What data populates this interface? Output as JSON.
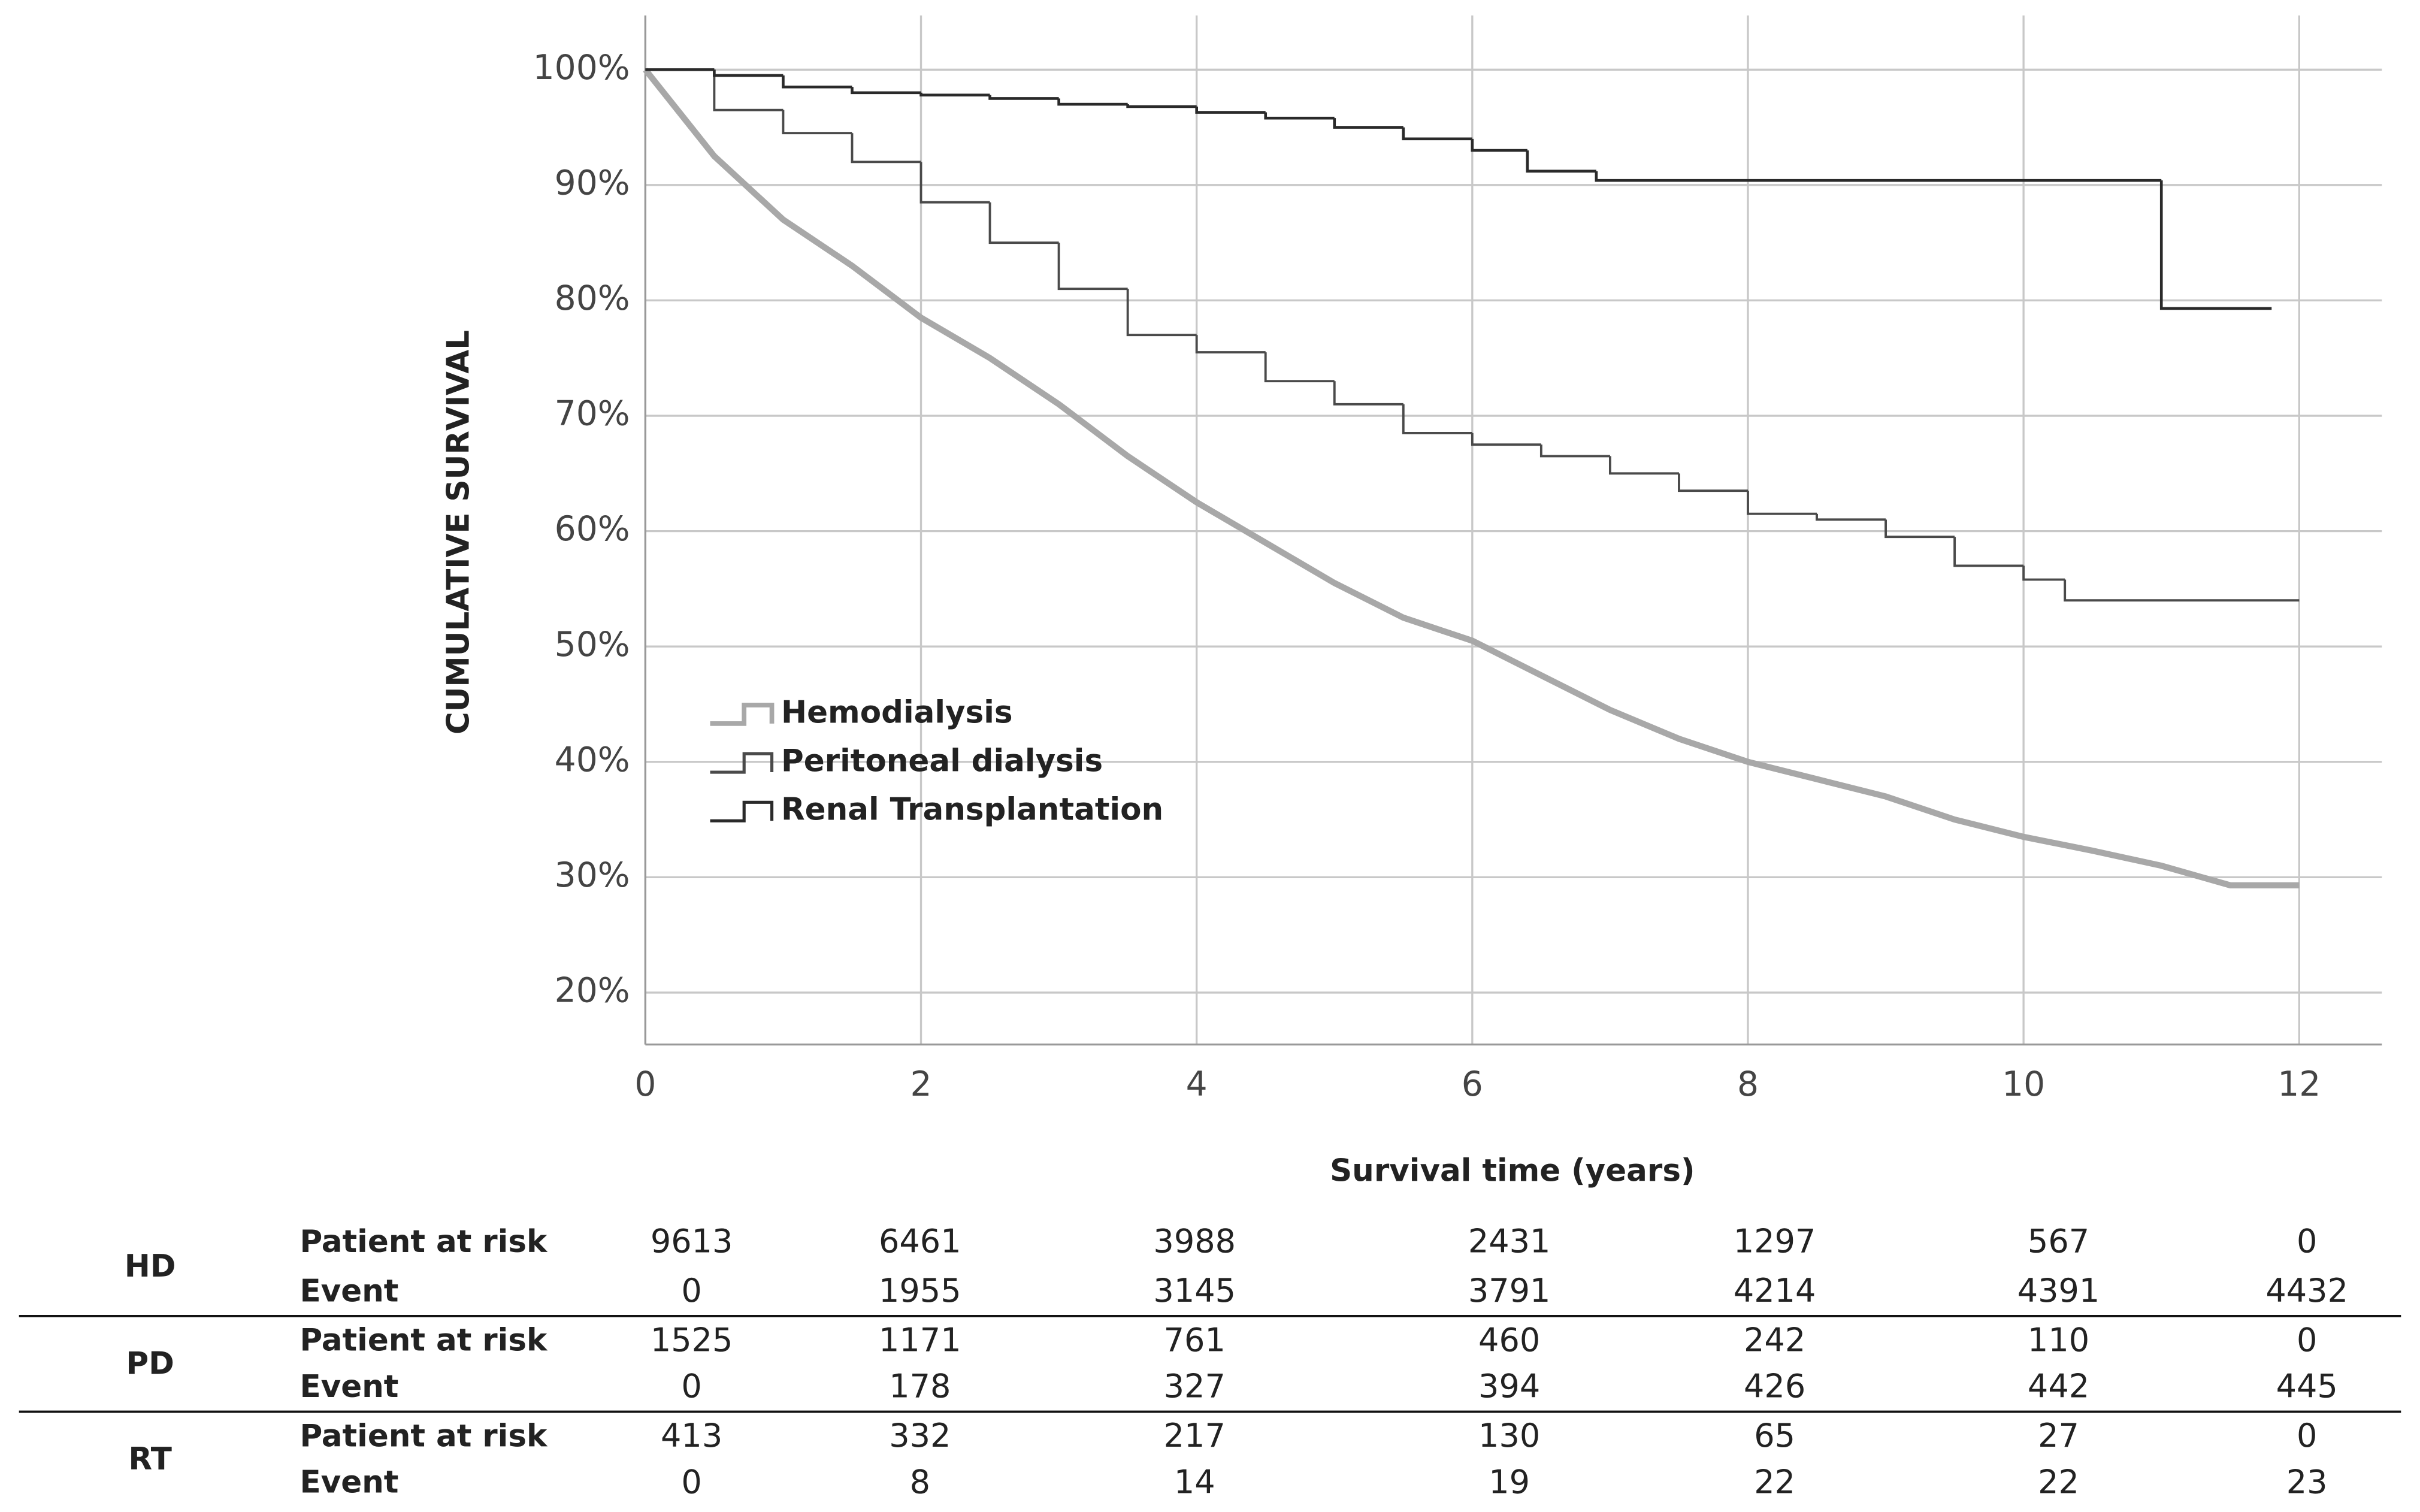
{
  "chart_data": {
    "type": "line",
    "drawstyle": "steps-post",
    "xlabel": "Survival time (years)",
    "ylabel": "CUMULATIVE SURVIVAL",
    "xlim": [
      0,
      12.6
    ],
    "ylim": [
      15.5,
      104.7
    ],
    "xticks": [
      0,
      2,
      4,
      6,
      8,
      10,
      12
    ],
    "yticks": [
      {
        "value": 20,
        "label": "20%"
      },
      {
        "value": 30,
        "label": "30%"
      },
      {
        "value": 40,
        "label": "40%"
      },
      {
        "value": 50,
        "label": "50%"
      },
      {
        "value": 60,
        "label": "60%"
      },
      {
        "value": 70,
        "label": "70%"
      },
      {
        "value": 80,
        "label": "80%"
      },
      {
        "value": 90,
        "label": "90%"
      },
      {
        "value": 100,
        "label": "100%"
      }
    ],
    "grid": true,
    "legend": "center left",
    "series": [
      {
        "name": "Hemodialysis",
        "color": "#a8a8a8",
        "x": [
          0,
          0.5,
          1,
          1.5,
          2,
          2.5,
          3,
          3.5,
          4,
          4.5,
          5,
          5.5,
          6,
          6.5,
          7,
          7.5,
          8,
          8.5,
          9,
          9.5,
          10,
          10.5,
          11,
          11.5,
          12
        ],
        "values": [
          100,
          92.5,
          87,
          83,
          78.5,
          75,
          71,
          66.5,
          62.5,
          59,
          55.5,
          52.5,
          50.5,
          47.5,
          44.5,
          42,
          40,
          38.5,
          37,
          35,
          33.5,
          32.3,
          31,
          29.3,
          29.3
        ]
      },
      {
        "name": "Peritoneal dialysis",
        "color": "#4a4a4a",
        "x": [
          0,
          0.5,
          1,
          1.5,
          2,
          2.5,
          3,
          3.5,
          4,
          4.5,
          5,
          5.5,
          6,
          6.5,
          7,
          7.5,
          8,
          8.5,
          9,
          9.5,
          10,
          10.3,
          12
        ],
        "values": [
          100,
          96.5,
          94.5,
          92,
          88.5,
          85,
          81,
          77,
          75.5,
          73,
          71,
          68.5,
          67.5,
          66.5,
          65,
          63.5,
          61.5,
          61,
          59.5,
          57,
          55.8,
          54,
          54
        ]
      },
      {
        "name": "Renal Transplantation",
        "color": "#2a2a2a",
        "x": [
          0,
          0.5,
          1,
          1.5,
          2,
          2.5,
          3,
          3.5,
          4,
          4.5,
          5,
          5.5,
          6,
          6.4,
          6.9,
          11,
          11.8
        ],
        "values": [
          100,
          99.5,
          98.5,
          98,
          97.8,
          97.5,
          97,
          96.8,
          96.3,
          95.8,
          95,
          94,
          93,
          91.2,
          90.4,
          79.3,
          79.3
        ]
      }
    ]
  },
  "risk_table": {
    "groups": [
      {
        "label": "HD",
        "rows": [
          {
            "label": "Patient at risk",
            "values": [
              9613,
              6461,
              3988,
              2431,
              1297,
              567,
              0
            ]
          },
          {
            "label": "Event",
            "values": [
              0,
              1955,
              3145,
              3791,
              4214,
              4391,
              4432
            ]
          }
        ]
      },
      {
        "label": "PD",
        "rows": [
          {
            "label": "Patient at risk",
            "values": [
              1525,
              1171,
              761,
              460,
              242,
              110,
              0
            ]
          },
          {
            "label": "Event",
            "values": [
              0,
              178,
              327,
              394,
              426,
              442,
              445
            ]
          }
        ]
      },
      {
        "label": "RT",
        "rows": [
          {
            "label": "Patient at risk",
            "values": [
              413,
              332,
              217,
              130,
              65,
              27,
              0
            ]
          },
          {
            "label": "Event",
            "values": [
              0,
              8,
              14,
              19,
              22,
              22,
              23
            ]
          }
        ]
      }
    ]
  }
}
